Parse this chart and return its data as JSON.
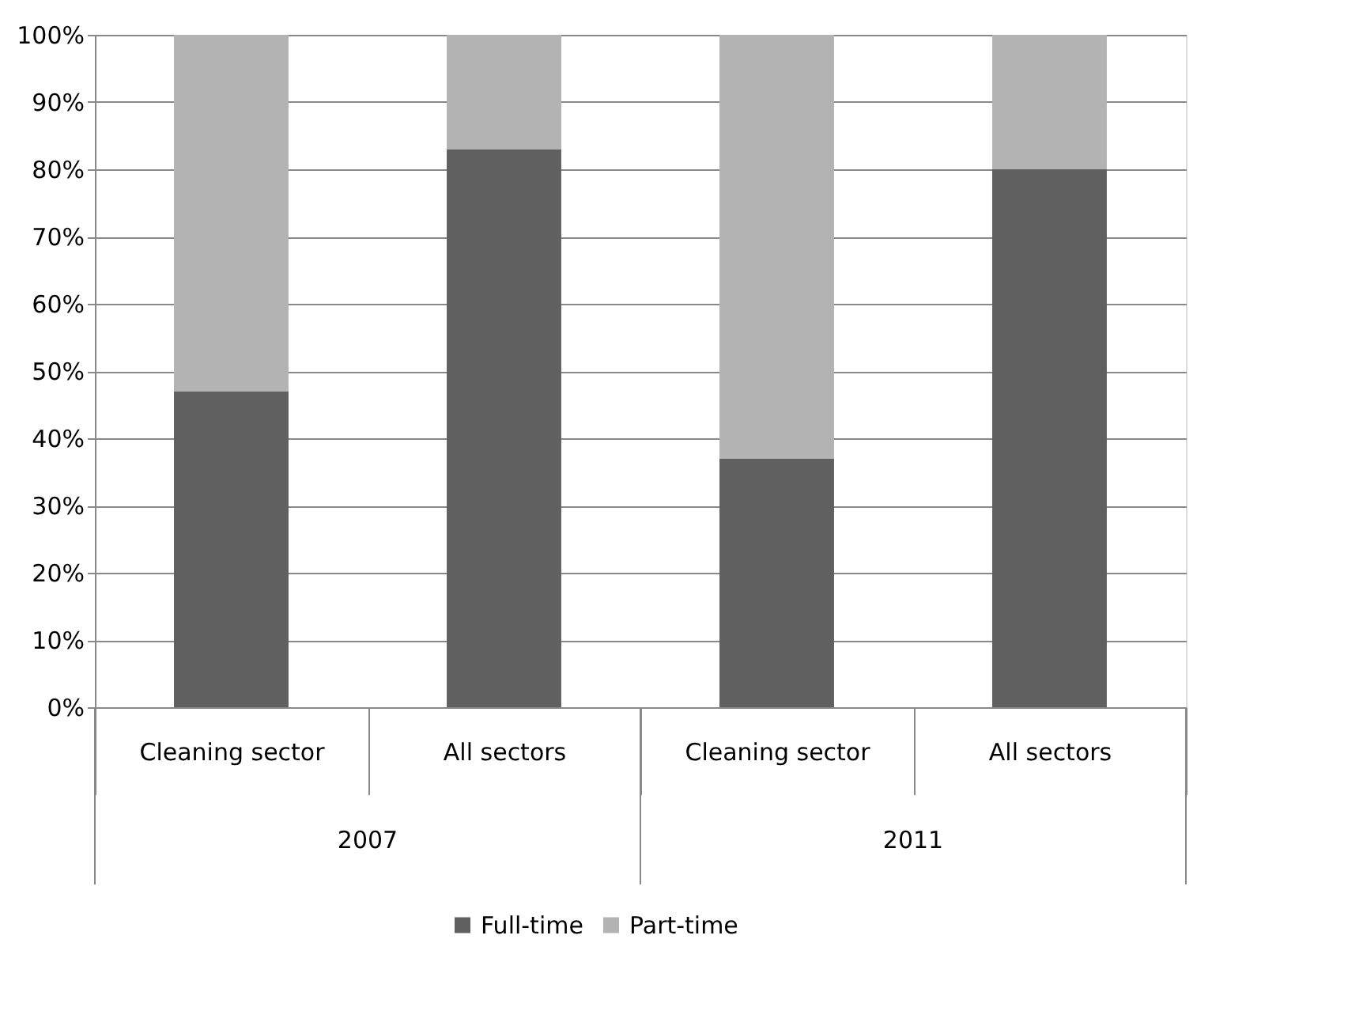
{
  "chart_data": {
    "type": "bar",
    "stacked": true,
    "categories": [
      "Cleaning sector",
      "All sectors",
      "Cleaning sector",
      "All sectors"
    ],
    "annotations": [
      "2007",
      "2011"
    ],
    "series": [
      {
        "name": "Full-time",
        "color": "#606060",
        "values": [
          47,
          83,
          37,
          80
        ]
      },
      {
        "name": "Part-time",
        "color": "#b3b3b3",
        "values": [
          53,
          17,
          63,
          20
        ]
      }
    ],
    "ylim": [
      0,
      100
    ],
    "yticks": [
      {
        "value": 0,
        "label": "0%"
      },
      {
        "value": 10,
        "label": "10%"
      },
      {
        "value": 20,
        "label": "20%"
      },
      {
        "value": 30,
        "label": "30%"
      },
      {
        "value": 40,
        "label": "40%"
      },
      {
        "value": 50,
        "label": "50%"
      },
      {
        "value": 60,
        "label": "60%"
      },
      {
        "value": 70,
        "label": "70%"
      },
      {
        "value": 80,
        "label": "80%"
      },
      {
        "value": 90,
        "label": "90%"
      },
      {
        "value": 100,
        "label": "100%"
      }
    ],
    "grid": "y",
    "legend": "bottom"
  }
}
